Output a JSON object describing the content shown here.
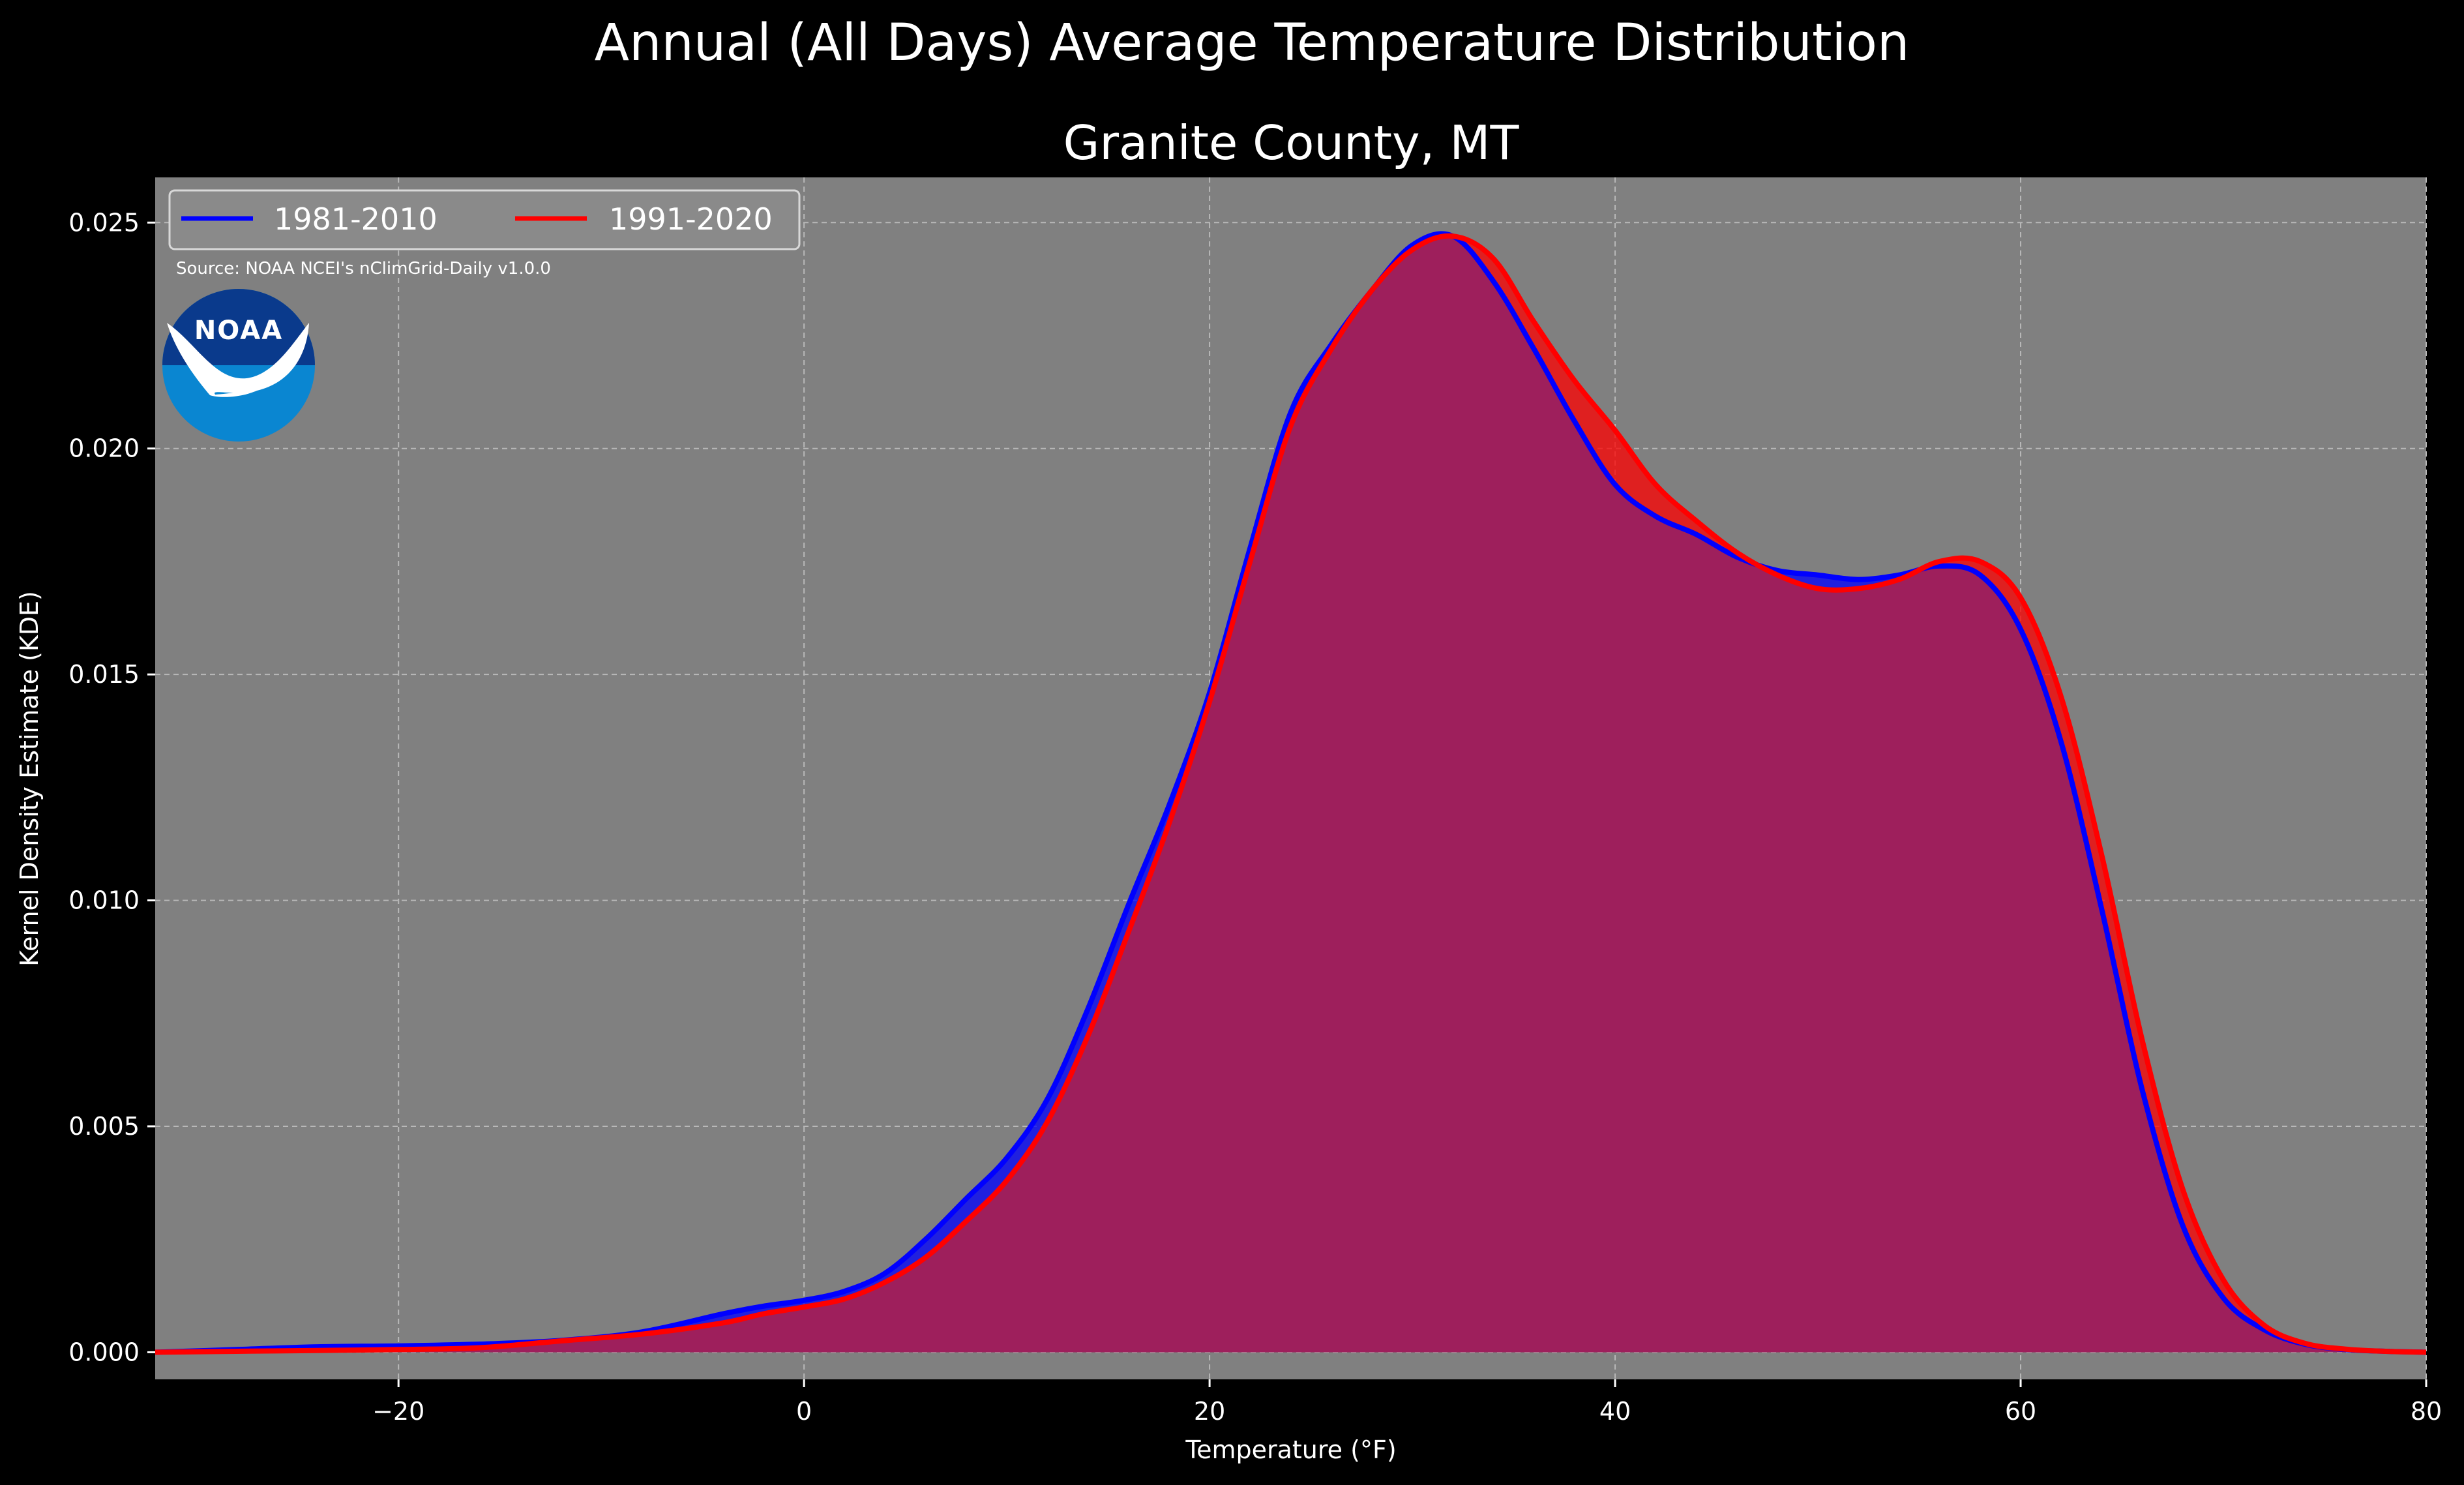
{
  "chart_data": {
    "type": "area",
    "suptitle": "Annual (All Days) Average Temperature Distribution",
    "title": "Granite County, MT",
    "xlabel": "Temperature (°F)",
    "ylabel": "Kernel Density Estimate (KDE)",
    "xlim": [
      -32,
      80
    ],
    "ylim": [
      -0.0006,
      0.026
    ],
    "xticks": [
      -20,
      0,
      20,
      40,
      60,
      80
    ],
    "xtick_labels": [
      "−20",
      "0",
      "20",
      "40",
      "60",
      "80"
    ],
    "yticks": [
      0.0,
      0.005,
      0.01,
      0.015,
      0.02,
      0.025
    ],
    "ytick_labels": [
      "0.000",
      "0.005",
      "0.010",
      "0.015",
      "0.020",
      "0.025"
    ],
    "grid": true,
    "legend_position": "top-left",
    "source_note": "Source: NOAA NCEI's nClimGrid-Daily v1.0.0",
    "logo_text": "NOAA",
    "colors": {
      "figure_bg": "#000000",
      "axes_bg": "#808080",
      "fill_overlap": "#9E1F5C",
      "noaa_dark": "#0A3A8C",
      "noaa_light": "#0A86D1"
    },
    "series": [
      {
        "name": "1981-2010",
        "color": "#0000FF",
        "fill": "#0000FF",
        "x": [
          -32,
          -28,
          -24,
          -20,
          -16,
          -12,
          -8,
          -4,
          -2,
          0,
          2,
          4,
          6,
          8,
          10,
          12,
          14,
          16,
          18,
          20,
          22,
          24,
          26,
          28,
          30,
          32,
          34,
          36,
          38,
          40,
          42,
          44,
          46,
          48,
          50,
          52,
          54,
          56,
          58,
          60,
          62,
          64,
          66,
          68,
          70,
          72,
          74,
          76,
          78,
          80
        ],
        "values": [
          0.0,
          6e-05,
          0.00012,
          0.00014,
          0.00018,
          0.00026,
          0.00045,
          0.00085,
          0.00102,
          0.00115,
          0.00135,
          0.00175,
          0.0025,
          0.0034,
          0.0043,
          0.0056,
          0.0076,
          0.0099,
          0.0121,
          0.0146,
          0.0178,
          0.0208,
          0.0223,
          0.0235,
          0.0245,
          0.0247,
          0.0237,
          0.0222,
          0.0206,
          0.0192,
          0.0185,
          0.0181,
          0.0176,
          0.0173,
          0.0172,
          0.0171,
          0.0172,
          0.0174,
          0.0172,
          0.016,
          0.0135,
          0.0098,
          0.0058,
          0.0028,
          0.0012,
          0.0005,
          0.00018,
          6e-05,
          2e-05,
          0.0
        ]
      },
      {
        "name": "1991-2020",
        "color": "#FF0000",
        "fill": "#FF0000",
        "x": [
          -32,
          -28,
          -24,
          -20,
          -16,
          -12,
          -8,
          -4,
          -2,
          0,
          2,
          4,
          6,
          8,
          10,
          12,
          14,
          16,
          18,
          20,
          22,
          24,
          26,
          28,
          30,
          32,
          34,
          36,
          38,
          40,
          42,
          44,
          46,
          48,
          50,
          52,
          54,
          56,
          58,
          60,
          62,
          64,
          66,
          68,
          70,
          72,
          74,
          76,
          78,
          80
        ],
        "values": [
          0.0,
          2e-05,
          4e-05,
          6e-05,
          0.0001,
          0.00025,
          0.0004,
          0.00065,
          0.00085,
          0.001,
          0.00118,
          0.00155,
          0.0021,
          0.0029,
          0.0038,
          0.0051,
          0.007,
          0.0093,
          0.0117,
          0.0144,
          0.0175,
          0.0205,
          0.0222,
          0.0235,
          0.0244,
          0.0247,
          0.0242,
          0.0228,
          0.0215,
          0.0204,
          0.0192,
          0.0184,
          0.0177,
          0.0172,
          0.0169,
          0.0169,
          0.0171,
          0.0175,
          0.0175,
          0.0167,
          0.0145,
          0.011,
          0.0069,
          0.0036,
          0.0016,
          0.0006,
          0.0002,
          7e-05,
          2e-05,
          0.0
        ]
      }
    ]
  }
}
